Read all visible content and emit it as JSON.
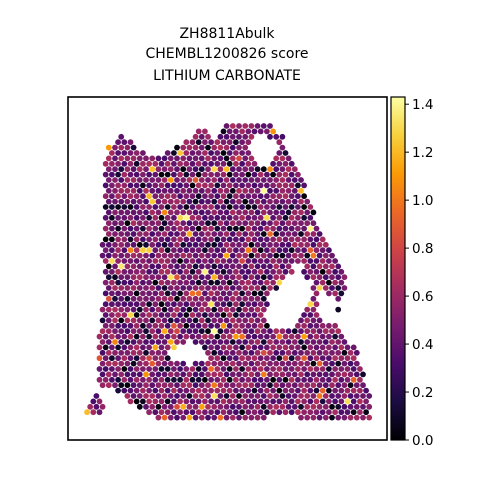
{
  "chart_data": {
    "type": "scatter",
    "subtype": "spatial-hexbin-spot-map",
    "title_lines": [
      "ZH8811Abulk",
      "CHEMBL1200826 score",
      "LITHIUM CARBONATE"
    ],
    "xlabel": "",
    "ylabel": "",
    "axes_ticks_visible": false,
    "grid": false,
    "colormap": "inferno",
    "colorbar": {
      "range": [
        0.0,
        1.43
      ],
      "ticks": [
        0.0,
        0.2,
        0.4,
        0.6,
        0.8,
        1.0,
        1.2,
        1.4
      ],
      "tick_labels": [
        "0.0",
        "0.2",
        "0.4",
        "0.6",
        "0.8",
        "1.0",
        "1.2",
        "1.4"
      ]
    },
    "value_distribution": {
      "typical_range": [
        0.3,
        0.6
      ],
      "min": 0.0,
      "max": 1.43
    }
  },
  "colors": {
    "background": "#ffffff",
    "frame": "#000000",
    "cmap_stops": [
      "#000004",
      "#1b0c41",
      "#4a0c6b",
      "#781c6d",
      "#a52c60",
      "#cf4446",
      "#ed6925",
      "#fb9b06",
      "#f7d13d",
      "#fcffa4"
    ]
  }
}
